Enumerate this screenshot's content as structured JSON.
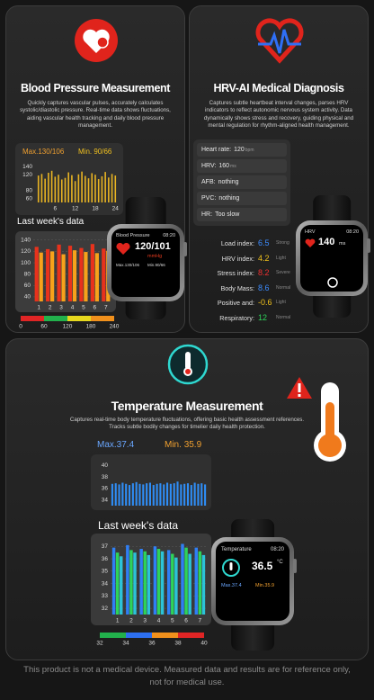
{
  "bp": {
    "title": "Blood Pressure Measurement",
    "description": "Quickly captures vascular pulses, accurately calculates systolic/diastolic pressure. Real-time data shows fluctuations, aiding vascular health tracking and daily blood pressure management.",
    "max_label": "Max.",
    "max": "130/106",
    "min_label": "Min.",
    "min": "90/66",
    "daily_chart": {
      "type": "bar",
      "color": "#e8b423",
      "xlim": [
        0,
        25
      ],
      "x": [
        1,
        2,
        3,
        4,
        5,
        6,
        7,
        8,
        9,
        10,
        11,
        12,
        13,
        14,
        15,
        16,
        17,
        18,
        19,
        20,
        21,
        22,
        23,
        24
      ],
      "values": [
        118,
        122,
        110,
        125,
        130,
        115,
        120,
        108,
        112,
        126,
        119,
        104,
        121,
        128,
        117,
        111,
        124,
        120,
        109,
        116,
        127,
        113,
        122,
        118
      ],
      "xticks": [
        6,
        12,
        18,
        24
      ],
      "ylim": [
        50,
        150
      ],
      "yticks": [
        140,
        120,
        80,
        60
      ]
    },
    "weekly_title": "Last week's data",
    "weekly_chart": {
      "type": "bar",
      "grid": true,
      "categories": [
        "1",
        "2",
        "3",
        "4",
        "5",
        "6",
        "7"
      ],
      "ylim": [
        32,
        146
      ],
      "yticks": [
        140,
        120,
        100,
        80,
        60,
        40
      ],
      "series": [
        {
          "color": "#e8321c",
          "values": [
            128,
            124,
            132,
            130,
            126,
            133,
            125
          ]
        },
        {
          "color": "#f7a21b",
          "values": [
            118,
            120,
            115,
            122,
            119,
            117,
            121
          ]
        }
      ]
    },
    "scale": {
      "ticks": [
        0,
        60,
        120,
        180,
        240
      ],
      "colors": [
        "#e02525",
        "#22b14c",
        "#e6d81e",
        "#f0901c"
      ]
    },
    "watch": {
      "title": "Blood Pressure",
      "time": "08:20",
      "reading": "120/101",
      "unit": "mmHg",
      "max": "Max.130/106",
      "min": "Min.90/66"
    }
  },
  "hrv": {
    "title": "HRV-AI Medical Diagnosis",
    "description": "Captures subtle heartbeat interval changes, parses HRV indicators to reflect autonomic nervous system activity. Data dynamically shows stress and recovery, guiding physical and mental regulation for rhythm-aligned health management.",
    "list": [
      {
        "label": "Heart rate:",
        "value": 120,
        "unit": "bpm"
      },
      {
        "label": "HRV:",
        "value": 160,
        "unit": "ms"
      },
      {
        "label": "AFB:",
        "value": "nothing"
      },
      {
        "label": "PVC:",
        "value": "nothing"
      },
      {
        "label": "HR:",
        "value": "Too slow"
      }
    ],
    "indices": [
      {
        "label": "Load index:",
        "value": 6.5,
        "status": "Strong",
        "color": "#3c8cff"
      },
      {
        "label": "HRV index:",
        "value": 4.2,
        "status": "Light",
        "color": "#f2c21b"
      },
      {
        "label": "Stress index:",
        "value": 8.2,
        "status": "Severe",
        "color": "#f03030"
      },
      {
        "label": "Body Mass:",
        "value": 8.6,
        "status": "Normal",
        "color": "#3c8cff"
      },
      {
        "label": "Positive and:",
        "value": -0.6,
        "status": "Light",
        "color": "#f2c21b"
      },
      {
        "label": "Respiratory:",
        "value": 12,
        "status": "Normal",
        "color": "#2ed35a"
      }
    ],
    "watch": {
      "title": "HRV",
      "time": "08:20",
      "reading": 140,
      "unit": "ms"
    }
  },
  "temp": {
    "title": "Temperature Measurement",
    "description": "Captures real-time body temperature fluctuations, offering basic health assessment references. Tracks subtle bodily changes for timelier daily health protection.",
    "max_label": "Max.",
    "max": 37.4,
    "min_label": "Min.",
    "min": 35.9,
    "daily_chart": {
      "type": "bar",
      "color": "#2f8df5",
      "ylim": [
        33,
        41
      ],
      "yticks": [
        40,
        38,
        36,
        34
      ],
      "values": [
        36.8,
        36.9,
        36.7,
        37.0,
        36.8,
        36.6,
        36.9,
        37.1,
        36.8,
        36.7,
        36.9,
        37.0,
        36.6,
        36.8,
        36.9,
        36.7,
        37.0,
        36.8,
        36.9,
        37.2,
        36.7,
        36.8,
        36.9,
        36.6,
        37.0,
        36.8,
        36.9,
        36.7
      ]
    },
    "weekly_title": "Last week's data",
    "weekly_chart": {
      "type": "bar",
      "grid": true,
      "categories": [
        "1",
        "2",
        "3",
        "4",
        "5",
        "6",
        "7"
      ],
      "ylim": [
        31.5,
        37.6
      ],
      "yticks": [
        37,
        36,
        35,
        34,
        33,
        32
      ],
      "series": [
        {
          "color": "#2f7ff5",
          "values": [
            36.9,
            37.1,
            36.8,
            37.0,
            36.7,
            37.2,
            36.9
          ]
        },
        {
          "color": "#2ed35a",
          "values": [
            36.5,
            36.7,
            36.6,
            36.8,
            36.4,
            36.9,
            36.6
          ]
        },
        {
          "color": "#2cc3d8",
          "values": [
            36.2,
            36.5,
            36.3,
            36.6,
            36.1,
            36.4,
            36.3
          ]
        }
      ]
    },
    "scale": {
      "ticks": [
        32,
        34,
        36,
        38,
        40
      ],
      "colors": [
        "#22b14c",
        "#2d6ff0",
        "#f0901c",
        "#e02525"
      ]
    },
    "watch": {
      "title": "Temperature",
      "time": "08:20",
      "reading": 36.5,
      "unit": "°C",
      "max": "Max.37.4",
      "min": "Min.35.9"
    }
  },
  "footer": "This product is not a medical device. Measured data and results are for reference only, not for medical use."
}
